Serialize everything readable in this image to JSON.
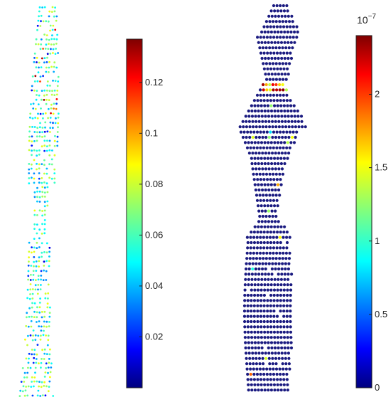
{
  "figure": {
    "panels": [
      "left",
      "right"
    ]
  },
  "chart_data": [
    {
      "type": "scatter",
      "panel": "left",
      "colormap": "jet",
      "colorbar": {
        "range": [
          0,
          0.137
        ],
        "ticks": [
          0.02,
          0.04,
          0.06,
          0.08,
          0.1,
          0.12
        ],
        "tick_labels": [
          "0.02",
          "0.04",
          "0.06",
          "0.08",
          "0.1",
          "0.12"
        ],
        "exponent": ""
      },
      "point_density": "sparse",
      "point_values": "mostly 0.04–0.08 (cyan/green), a few high values near the top"
    },
    {
      "type": "scatter",
      "panel": "right",
      "colormap": "jet",
      "colorbar": {
        "range": [
          0,
          2.4
        ],
        "ticks": [
          0,
          0.5,
          1,
          1.5,
          2
        ],
        "tick_labels": [
          "0",
          "0.5",
          "1",
          "1.5",
          "2"
        ],
        "exponent_base": "10",
        "exponent_power": "−7"
      },
      "point_density": "dense",
      "point_values": "mostly near 0 (dark blue), a hot spot (red/yellow) in the upper portion"
    }
  ],
  "colors": {
    "jet_low": "#00007f",
    "jet_blue": "#0000ff",
    "jet_cyan": "#00ffff",
    "jet_green": "#7fff7f",
    "jet_yellow": "#ffff00",
    "jet_red": "#ff0000",
    "jet_high": "#7f0000",
    "right_points": "#1a1a80"
  }
}
